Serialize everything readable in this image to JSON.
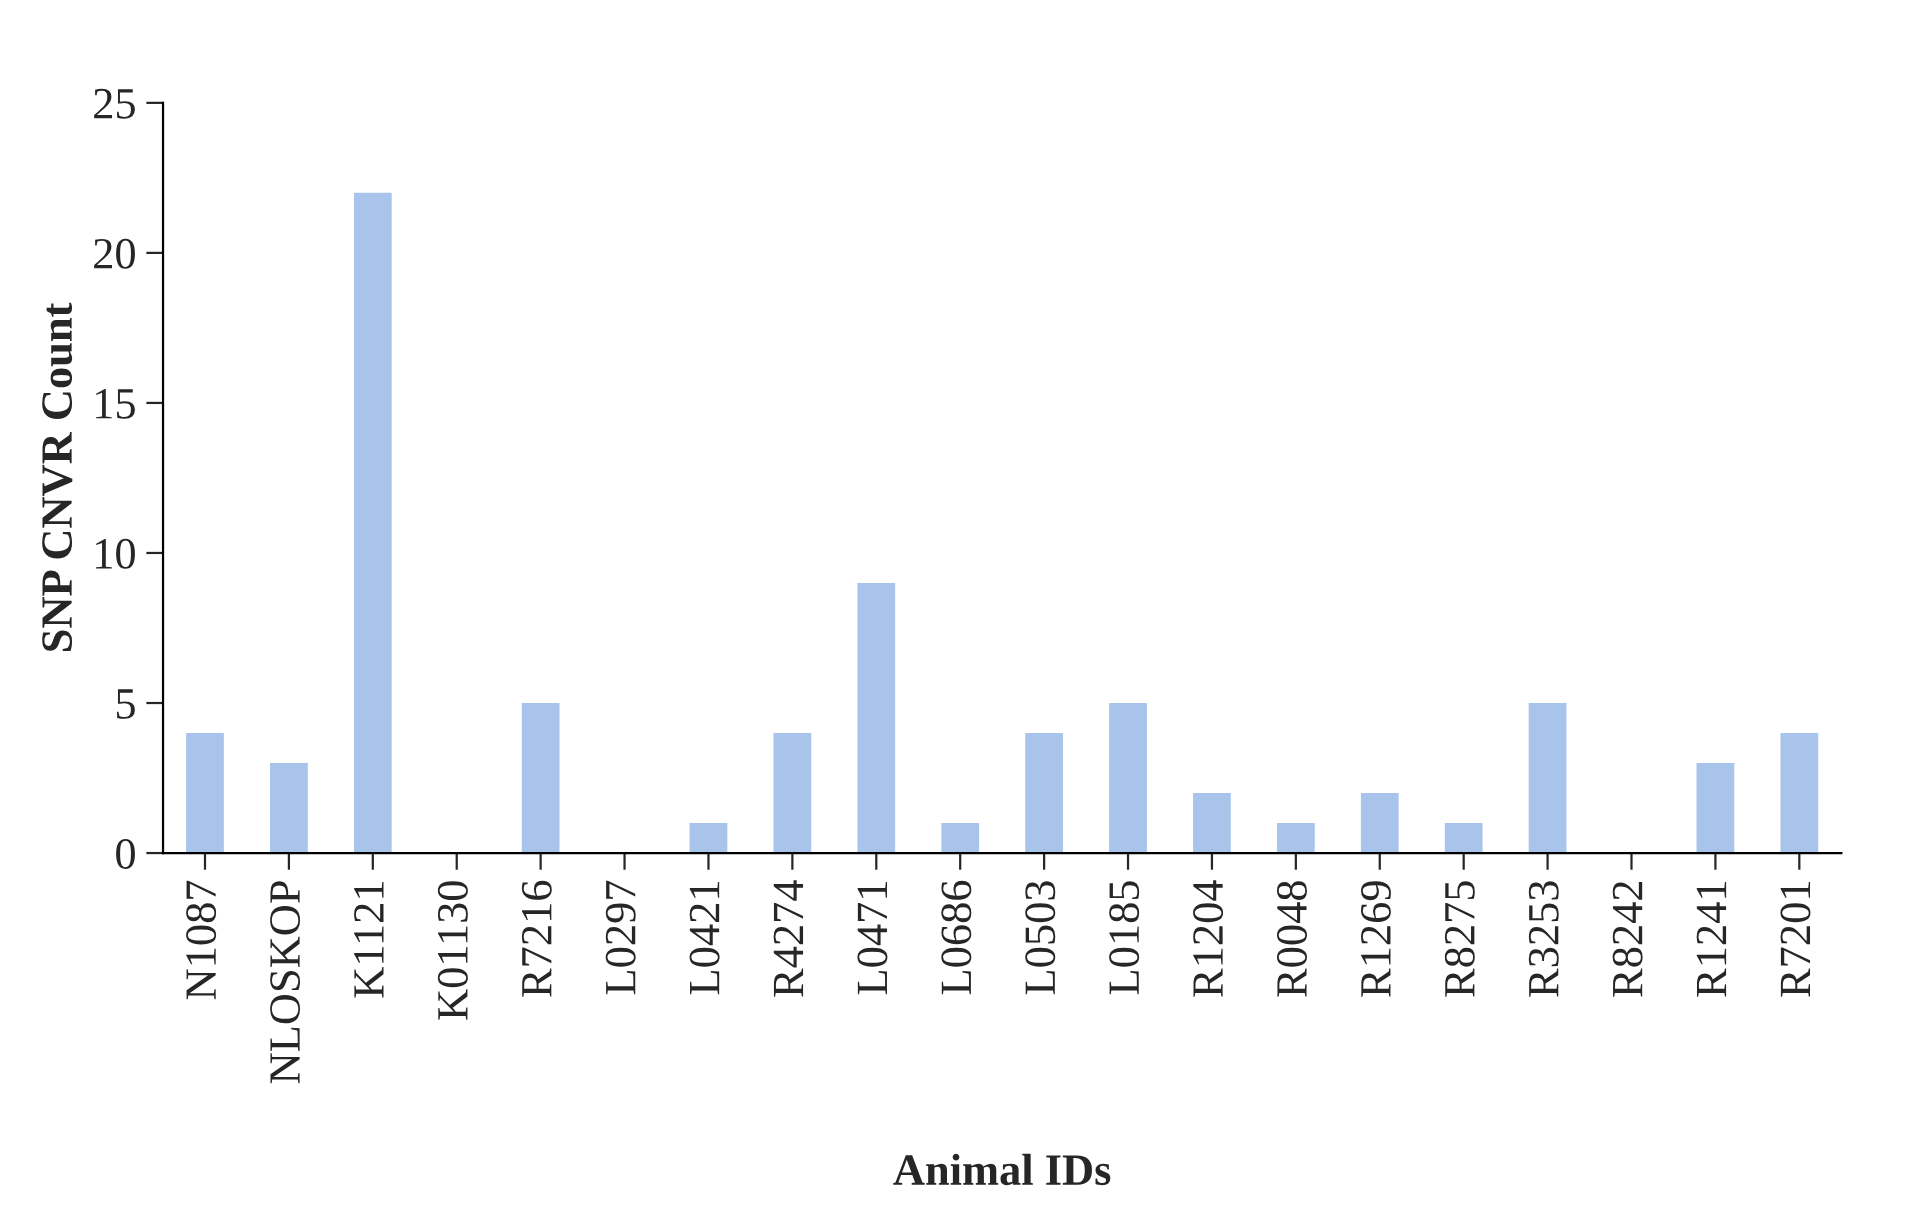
{
  "chart_data": {
    "type": "bar",
    "xlabel": "Animal IDs",
    "ylabel": "SNP CNVR Count",
    "categories": [
      "N1087",
      "NLOSKOP",
      "K1121",
      "K01130",
      "R7216",
      "L0297",
      "L0421",
      "R4274",
      "L0471",
      "L0686",
      "L0503",
      "L0185",
      "R1204",
      "R0048",
      "R1269",
      "R8275",
      "R3253",
      "R8242",
      "R1241",
      "R7201"
    ],
    "values": [
      4,
      3,
      22,
      0,
      5,
      0,
      1,
      4,
      9,
      1,
      4,
      5,
      2,
      1,
      2,
      1,
      5,
      0,
      3,
      4
    ],
    "color": "#a9c4ea",
    "ylim": [
      0,
      25
    ],
    "yticks": [
      0,
      5,
      10,
      15,
      20,
      25
    ],
    "grid": false,
    "legend": false
  }
}
